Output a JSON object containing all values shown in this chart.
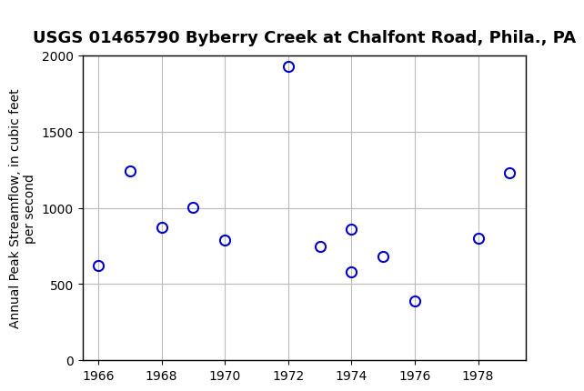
{
  "title": "USGS 01465790 Byberry Creek at Chalfont Road, Phila., PA",
  "xlabel": "",
  "ylabel": "Annual Peak Streamflow, in cubic feet\nper second",
  "years": [
    1966,
    1967,
    1968,
    1969,
    1970,
    1972,
    1973,
    1974,
    1975,
    1976,
    1978,
    1979
  ],
  "flows": [
    620,
    1240,
    870,
    1005,
    790,
    1930,
    750,
    860,
    580,
    680,
    390,
    800,
    1230
  ],
  "years_all": [
    1966,
    1967,
    1968,
    1969,
    1970,
    1972,
    1973,
    1974,
    1974,
    1975,
    1976,
    1978,
    1979
  ],
  "flows_all": [
    620,
    1240,
    870,
    1005,
    790,
    1930,
    750,
    860,
    580,
    680,
    390,
    800,
    1230
  ],
  "xlim": [
    1965.5,
    1979.5
  ],
  "ylim": [
    0,
    2000
  ],
  "yticks": [
    0,
    500,
    1000,
    1500,
    2000
  ],
  "xticks": [
    1966,
    1968,
    1970,
    1972,
    1974,
    1976,
    1978
  ],
  "marker_color": "#0000cc",
  "marker_size": 8,
  "marker_style": "o",
  "marker_facecolor": "none",
  "grid_color": "#bbbbbb",
  "background_color": "#ffffff",
  "header_color": "#1a6b3c",
  "title_fontsize": 13,
  "axis_fontsize": 10,
  "tick_fontsize": 10
}
